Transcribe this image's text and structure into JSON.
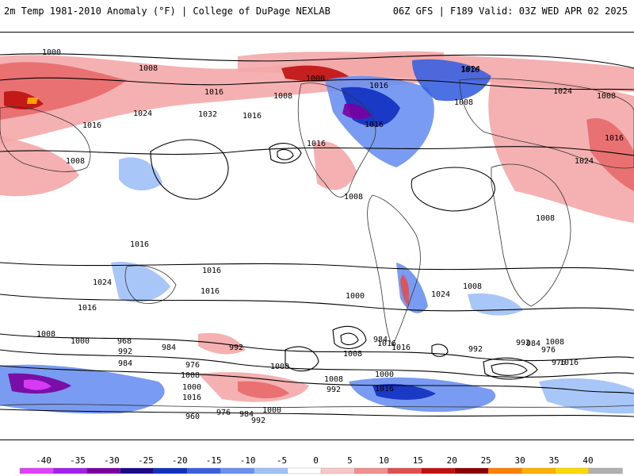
{
  "header": {
    "title": "2m Temp 1981-2010 Anomaly (°F) | College of DuPage NEXLAB",
    "run_info": "06Z GFS | F189 Valid: 03Z WED APR 02 2025"
  },
  "map": {
    "projection": "global-equirectangular",
    "isobar_labels": [
      {
        "text": "1000"
      },
      {
        "text": "1008"
      },
      {
        "text": "1016"
      },
      {
        "text": "1024"
      },
      {
        "text": "1032"
      },
      {
        "text": "1016"
      },
      {
        "text": "1008"
      },
      {
        "text": "1016"
      },
      {
        "text": "1016"
      },
      {
        "text": "1024"
      },
      {
        "text": "1016"
      },
      {
        "text": "1008"
      },
      {
        "text": "1024"
      },
      {
        "text": "1008"
      },
      {
        "text": "1016"
      },
      {
        "text": "1024"
      },
      {
        "text": "1000"
      },
      {
        "text": "1016"
      },
      {
        "text": "1008"
      },
      {
        "text": "1008"
      },
      {
        "text": "1016"
      },
      {
        "text": "1008"
      },
      {
        "text": "1016"
      },
      {
        "text": "1024"
      },
      {
        "text": "1016"
      },
      {
        "text": "1016"
      },
      {
        "text": "1016"
      },
      {
        "text": "1000"
      },
      {
        "text": "1008"
      },
      {
        "text": "1024"
      },
      {
        "text": "1016"
      },
      {
        "text": "1016"
      },
      {
        "text": "1008"
      },
      {
        "text": "984"
      },
      {
        "text": "1000"
      },
      {
        "text": "992"
      },
      {
        "text": "976"
      },
      {
        "text": "976"
      },
      {
        "text": "1008"
      },
      {
        "text": "984"
      },
      {
        "text": "992"
      },
      {
        "text": "1016"
      },
      {
        "text": "1008"
      },
      {
        "text": "1000"
      },
      {
        "text": "968"
      },
      {
        "text": "984"
      },
      {
        "text": "992"
      },
      {
        "text": "1000"
      },
      {
        "text": "992"
      },
      {
        "text": "984"
      },
      {
        "text": "976"
      },
      {
        "text": "1008"
      },
      {
        "text": "1000"
      },
      {
        "text": "1016"
      },
      {
        "text": "960"
      },
      {
        "text": "976"
      },
      {
        "text": "984"
      },
      {
        "text": "1000"
      },
      {
        "text": "992"
      },
      {
        "text": "1008"
      },
      {
        "text": "992"
      },
      {
        "text": "1016"
      }
    ]
  },
  "legend": {
    "ticks": [
      "-40",
      "-35",
      "-30",
      "-25",
      "-20",
      "-15",
      "-10",
      "-5",
      "0",
      "5",
      "10",
      "15",
      "20",
      "25",
      "30",
      "35",
      "40"
    ],
    "colors": [
      "#e040fb",
      "#a020f0",
      "#7a00a0",
      "#1a0a8a",
      "#1030c0",
      "#3a60e0",
      "#6a90f0",
      "#a0c0f8",
      "#ffffff",
      "#f8c8c8",
      "#f09090",
      "#e05050",
      "#c01010",
      "#8a0000",
      "#ff8000",
      "#ffb000",
      "#ffd800",
      "#b0b0b0"
    ]
  }
}
